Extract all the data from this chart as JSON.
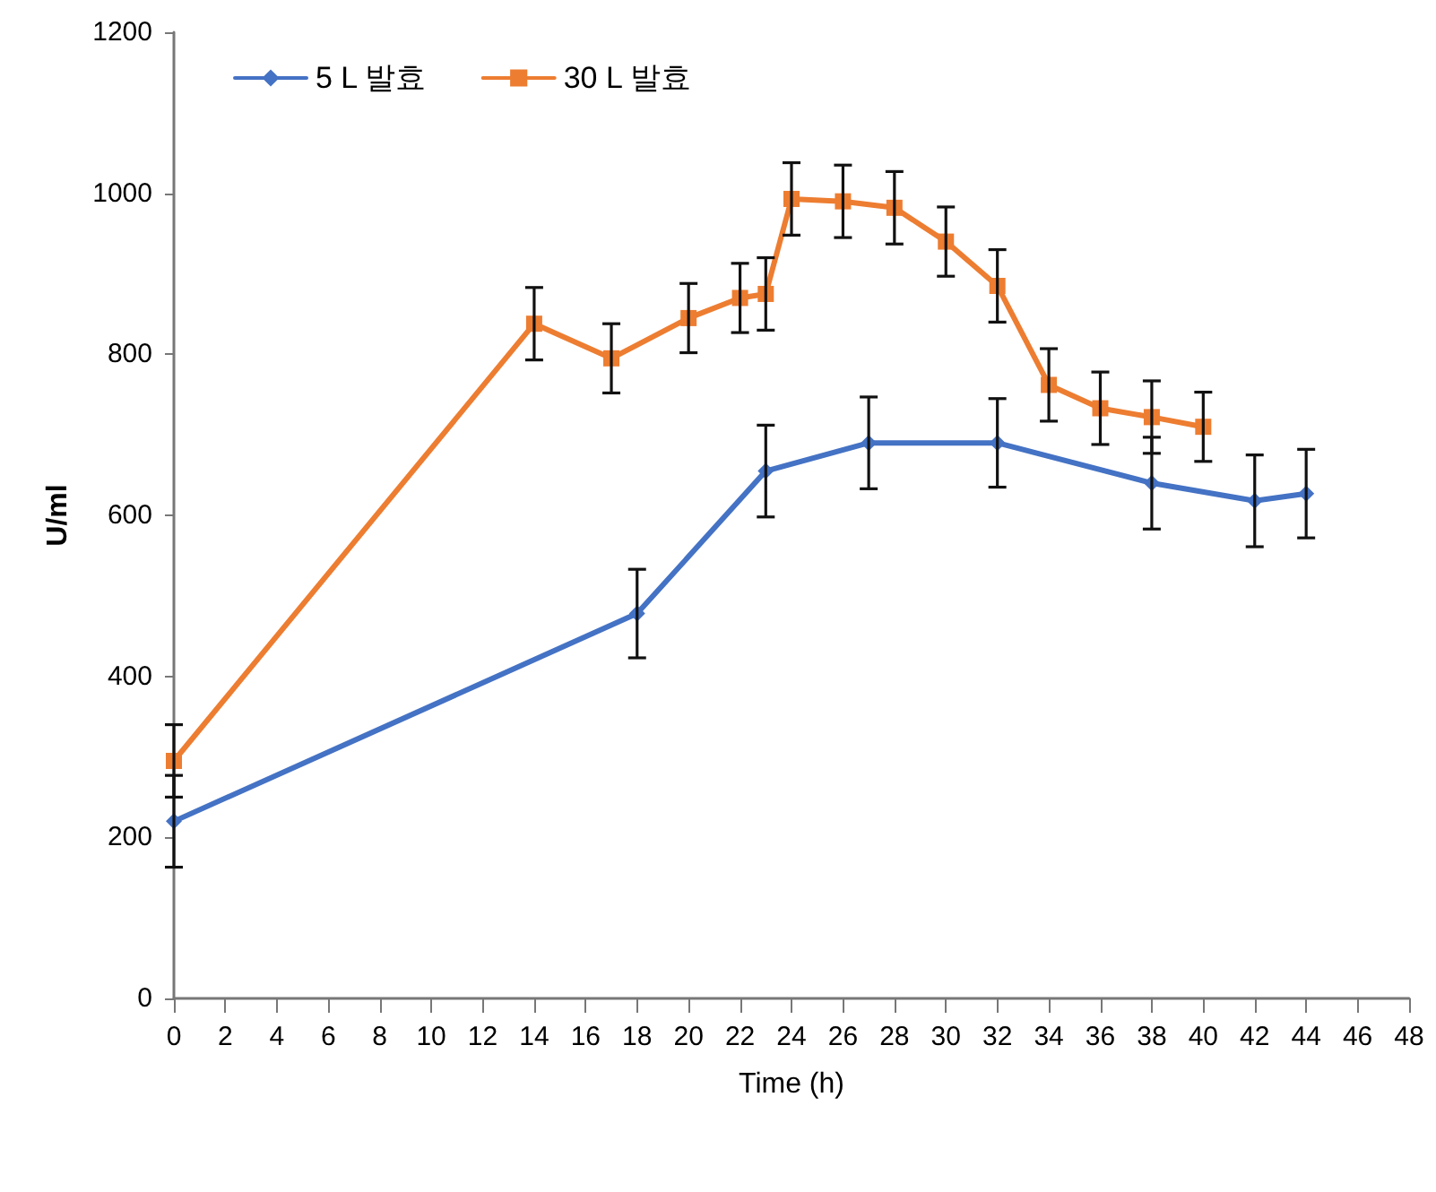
{
  "chart_data": {
    "type": "line",
    "xlabel": "Time (h)",
    "ylabel": "U/ml",
    "xlim": [
      0,
      48
    ],
    "xticks": [
      0,
      2,
      4,
      6,
      8,
      10,
      12,
      14,
      16,
      18,
      20,
      22,
      24,
      26,
      28,
      30,
      32,
      34,
      36,
      38,
      40,
      42,
      44,
      46,
      48
    ],
    "ylim": [
      0,
      1200
    ],
    "yticks": [
      0,
      200,
      400,
      600,
      800,
      1000,
      1200
    ],
    "grid": false,
    "legend": "top left",
    "line_style": "solid",
    "series": [
      {
        "name": "5 L 발효",
        "color": "#4472c4",
        "marker": "diamond",
        "x": [
          0,
          18,
          23,
          27,
          32,
          38,
          42,
          44
        ],
        "values": [
          220,
          478,
          655,
          690,
          690,
          640,
          618,
          627
        ],
        "errors": [
          57,
          55,
          57,
          57,
          55,
          57,
          57,
          55
        ]
      },
      {
        "name": "30 L 발효",
        "color": "#ed7d31",
        "marker": "square",
        "x": [
          0,
          14,
          17,
          20,
          22,
          23,
          24,
          26,
          28,
          30,
          32,
          34,
          36,
          38,
          40
        ],
        "values": [
          295,
          838,
          795,
          845,
          870,
          875,
          993,
          990,
          982,
          940,
          885,
          762,
          733,
          722,
          710
        ],
        "errors": [
          45,
          45,
          43,
          43,
          43,
          45,
          45,
          45,
          45,
          43,
          45,
          45,
          45,
          45,
          43
        ]
      }
    ]
  }
}
